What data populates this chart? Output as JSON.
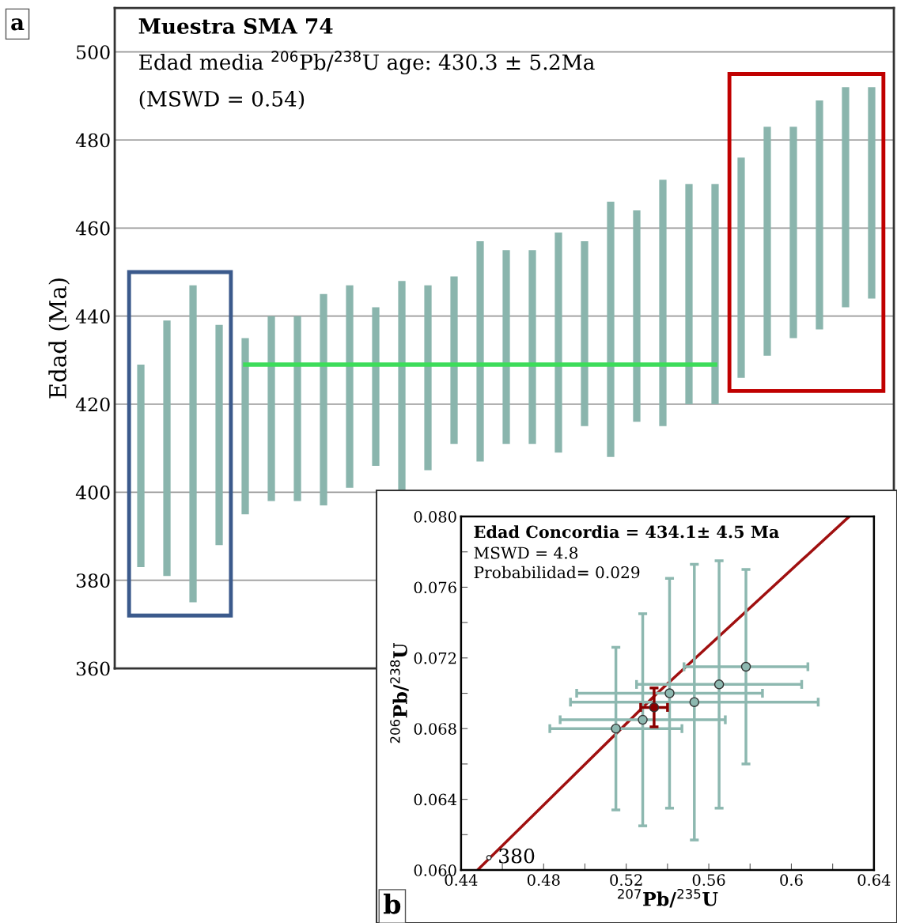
{
  "chart_data": [
    {
      "type": "bar",
      "ylabel": "Edad (Ma)",
      "categories": [
        null,
        null,
        null,
        null,
        null,
        null,
        null,
        null,
        null,
        null,
        null,
        null,
        null,
        null,
        null,
        null,
        null,
        null,
        null,
        null,
        null,
        null,
        null,
        null,
        null,
        null,
        null,
        null,
        null
      ],
      "series": [
        {
          "color": "#8ab5ad",
          "base": [
            383,
            381,
            375,
            388,
            395,
            398,
            398,
            397,
            401,
            406,
            400,
            405,
            411,
            407,
            411,
            411,
            409,
            415,
            408,
            416,
            415,
            420,
            420,
            426,
            431,
            435,
            437,
            442,
            444
          ],
          "values": [
            46,
            58,
            72,
            50,
            40,
            42,
            42,
            48,
            46,
            36,
            48,
            42,
            38,
            50,
            44,
            44,
            50,
            42,
            58,
            48,
            56,
            50,
            50,
            50,
            52,
            48,
            52,
            50,
            48
          ]
        },
        {
          "type": "line",
          "color": "#3ddc5a",
          "values": [
            null,
            null,
            null,
            null,
            429,
            429,
            429,
            429,
            429,
            429,
            429,
            429,
            429,
            429,
            429,
            429,
            429,
            429,
            429,
            429,
            429,
            429,
            429,
            null,
            null,
            null,
            null,
            null,
            null
          ]
        }
      ],
      "ylim": [
        360,
        510
      ],
      "yticks": [
        360,
        380,
        400,
        420,
        440,
        460,
        480,
        500
      ],
      "grid": "y",
      "tick_labels": "y",
      "annotations": [
        "a",
        "Muestra SMA 74",
        "Edad media $^{206}$Pb/$^{238}$U age: 430.3 ± 5.2Ma",
        "(MSWD = 0.54)"
      ]
    },
    {
      "type": "scatter",
      "xlabel": "$^{207}$Pb/$^{235}$U",
      "ylabel": "$^{206}$Pb/$^{238}$U",
      "series": [
        {
          "type": "line",
          "color": "#a01010",
          "x": [
            0.448,
            0.535,
            0.628
          ],
          "values": [
            0.06,
            0.07,
            0.08
          ]
        },
        {
          "color": "#8db8b0",
          "x": [
            0.515,
            0.528,
            0.541,
            0.565,
            0.553,
            0.578
          ],
          "values": [
            0.068,
            0.0685,
            0.07,
            0.0705,
            0.0695,
            0.0715
          ],
          "xerrors": [
            0.032,
            0.04,
            0.045,
            0.04,
            0.06,
            0.03
          ],
          "errors": [
            0.0046,
            0.006,
            0.0065,
            0.007,
            0.0078,
            0.0055
          ]
        },
        {
          "color": "#8b0000",
          "x": [
            0.5335
          ],
          "values": [
            0.0692
          ],
          "xerrors": [
            0.0065
          ],
          "errors": [
            0.0011
          ]
        }
      ],
      "xlim": [
        0.44,
        0.64
      ],
      "xticks": [
        0.44,
        {
          "value": 0.46,
          "label": null
        },
        0.48,
        {
          "value": 0.5,
          "label": null
        },
        0.52,
        {
          "value": 0.54,
          "label": null
        },
        0.56,
        {
          "value": 0.58,
          "label": null
        },
        0.6,
        {
          "value": 0.62,
          "label": null
        },
        0.64
      ],
      "ylim": [
        0.06,
        0.08
      ],
      "yticks": [
        {
          "value": 0.06,
          "label": "0.060"
        },
        {
          "value": 0.062,
          "label": null
        },
        {
          "value": 0.064,
          "label": "0.064"
        },
        {
          "value": 0.066,
          "label": null
        },
        {
          "value": 0.068,
          "label": "0.068"
        },
        {
          "value": 0.07,
          "label": null
        },
        {
          "value": 0.072,
          "label": "0.072"
        },
        {
          "value": 0.074,
          "label": null
        },
        {
          "value": 0.076,
          "label": "0.076"
        },
        {
          "value": 0.078,
          "label": null
        },
        {
          "value": 0.08,
          "label": "0.080"
        }
      ],
      "annotations": [
        "b",
        "Edad Concordia = 434.1± 4.5 Ma",
        "MSWD = 4.8",
        "Probabilidad= 0.029",
        {
          "text": "380",
          "x": 0.4535,
          "y": 0.0607
        }
      ]
    }
  ]
}
